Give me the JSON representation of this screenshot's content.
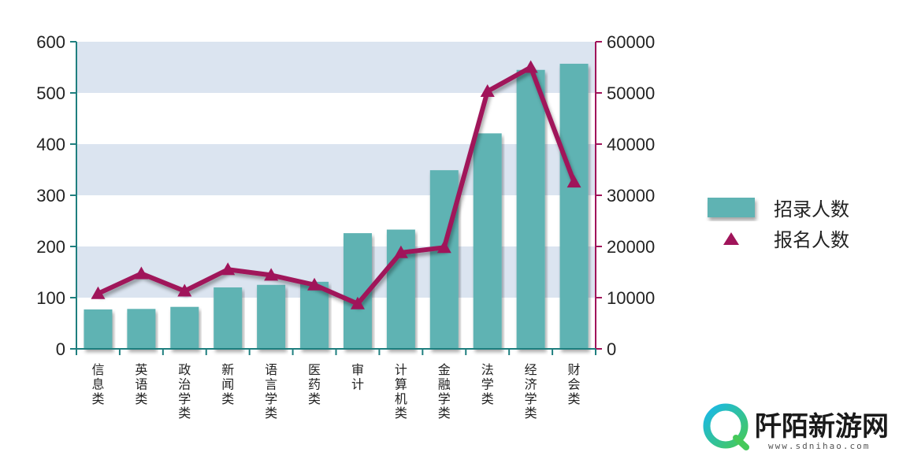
{
  "chart_data": {
    "type": "bar",
    "title": "",
    "xlabel": "",
    "ylabel": "",
    "categories": [
      "信息类",
      "英语类",
      "政治学类",
      "新闻类",
      "语言学类",
      "医药类",
      "审计",
      "计算机类",
      "金融学类",
      "法学类",
      "经济学类",
      "财会类"
    ],
    "series": [
      {
        "name": "招录人数",
        "type": "bar",
        "axis": "left",
        "color": "#5fb3b3",
        "values": [
          77,
          78,
          82,
          120,
          125,
          131,
          226,
          233,
          349,
          421,
          545,
          557
        ]
      },
      {
        "name": "报名人数",
        "type": "line",
        "axis": "right",
        "color": "#a0145a",
        "marker": "triangle",
        "values": [
          10800,
          14700,
          11300,
          15500,
          14400,
          12500,
          8800,
          18800,
          19800,
          50300,
          55000,
          32600
        ]
      }
    ],
    "ylim_left": [
      0,
      600
    ],
    "yticks_left": [
      "0",
      "100",
      "200",
      "300",
      "400",
      "500",
      "600"
    ],
    "ylim_right": [
      0,
      60000
    ],
    "yticks_right": [
      "0",
      "10000",
      "20000",
      "30000",
      "40000",
      "50000",
      "60000"
    ],
    "grid": "alternating horizontal bands",
    "legend": {
      "position": "right",
      "entries": [
        "招录人数",
        "报名人数"
      ]
    }
  },
  "watermark": {
    "text": "阡陌新游网",
    "subtext": "www.sdnihao.com"
  }
}
